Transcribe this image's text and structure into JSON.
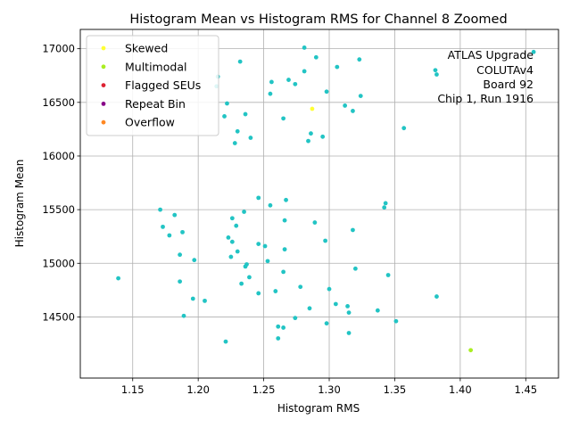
{
  "chart_data": {
    "type": "scatter",
    "title": "Histogram Mean vs Histogram RMS for Channel 8 Zoomed",
    "xlabel": "Histogram RMS",
    "ylabel": "Histogram Mean",
    "xlim": [
      1.11,
      1.475
    ],
    "ylim": [
      13930,
      17180
    ],
    "xticks": [
      1.15,
      1.2,
      1.25,
      1.3,
      1.35,
      1.4,
      1.45
    ],
    "xtick_labels": [
      "1.15",
      "1.20",
      "1.25",
      "1.30",
      "1.35",
      "1.40",
      "1.45"
    ],
    "yticks": [
      14500,
      15000,
      15500,
      16000,
      16500,
      17000
    ],
    "ytick_labels": [
      "14500",
      "15000",
      "15500",
      "16000",
      "16500",
      "17000"
    ],
    "grid": true,
    "legend_placement": "top-left",
    "legend": [
      {
        "label": "Skewed",
        "color": "#ffff33"
      },
      {
        "label": "Multimodal",
        "color": "#aaee22"
      },
      {
        "label": "Flagged SEUs",
        "color": "#dd2233"
      },
      {
        "label": "Repeat Bin",
        "color": "#880088"
      },
      {
        "label": "Overflow",
        "color": "#ff8822"
      }
    ],
    "annotation": [
      "ATLAS Upgrade",
      "COLUTAv4",
      "Board 92",
      "Chip 1, Run 1916"
    ],
    "series": [
      {
        "color": "#22c4c4",
        "points": [
          [
            1.281,
            17010
          ],
          [
            1.29,
            16920
          ],
          [
            1.323,
            16900
          ],
          [
            1.232,
            16880
          ],
          [
            1.306,
            16830
          ],
          [
            1.281,
            16790
          ],
          [
            1.215,
            16740
          ],
          [
            1.269,
            16710
          ],
          [
            1.256,
            16690
          ],
          [
            1.274,
            16670
          ],
          [
            1.214,
            16650
          ],
          [
            1.298,
            16600
          ],
          [
            1.255,
            16580
          ],
          [
            1.324,
            16560
          ],
          [
            1.222,
            16490
          ],
          [
            1.312,
            16470
          ],
          [
            1.318,
            16420
          ],
          [
            1.236,
            16390
          ],
          [
            1.22,
            16370
          ],
          [
            1.265,
            16350
          ],
          [
            1.357,
            16260
          ],
          [
            1.23,
            16230
          ],
          [
            1.286,
            16210
          ],
          [
            1.295,
            16180
          ],
          [
            1.24,
            16170
          ],
          [
            1.284,
            16140
          ],
          [
            1.228,
            16120
          ],
          [
            1.381,
            16800
          ],
          [
            1.382,
            16760
          ],
          [
            1.456,
            16970
          ],
          [
            1.246,
            15610
          ],
          [
            1.267,
            15590
          ],
          [
            1.343,
            15560
          ],
          [
            1.255,
            15540
          ],
          [
            1.342,
            15520
          ],
          [
            1.171,
            15500
          ],
          [
            1.235,
            15480
          ],
          [
            1.182,
            15450
          ],
          [
            1.226,
            15420
          ],
          [
            1.266,
            15400
          ],
          [
            1.289,
            15380
          ],
          [
            1.229,
            15350
          ],
          [
            1.173,
            15340
          ],
          [
            1.318,
            15310
          ],
          [
            1.188,
            15290
          ],
          [
            1.178,
            15260
          ],
          [
            1.223,
            15240
          ],
          [
            1.226,
            15200
          ],
          [
            1.297,
            15210
          ],
          [
            1.246,
            15180
          ],
          [
            1.251,
            15160
          ],
          [
            1.266,
            15130
          ],
          [
            1.23,
            15110
          ],
          [
            1.186,
            15080
          ],
          [
            1.225,
            15060
          ],
          [
            1.197,
            15030
          ],
          [
            1.253,
            15020
          ],
          [
            1.237,
            14990
          ],
          [
            1.236,
            14970
          ],
          [
            1.32,
            14950
          ],
          [
            1.265,
            14920
          ],
          [
            1.345,
            14890
          ],
          [
            1.239,
            14870
          ],
          [
            1.139,
            14860
          ],
          [
            1.186,
            14830
          ],
          [
            1.233,
            14810
          ],
          [
            1.278,
            14780
          ],
          [
            1.3,
            14760
          ],
          [
            1.259,
            14740
          ],
          [
            1.246,
            14720
          ],
          [
            1.382,
            14690
          ],
          [
            1.196,
            14670
          ],
          [
            1.205,
            14650
          ],
          [
            1.305,
            14620
          ],
          [
            1.314,
            14600
          ],
          [
            1.285,
            14580
          ],
          [
            1.337,
            14560
          ],
          [
            1.315,
            14540
          ],
          [
            1.189,
            14510
          ],
          [
            1.274,
            14490
          ],
          [
            1.351,
            14460
          ],
          [
            1.298,
            14440
          ],
          [
            1.261,
            14410
          ],
          [
            1.265,
            14400
          ],
          [
            1.315,
            14350
          ],
          [
            1.261,
            14300
          ],
          [
            1.221,
            14270
          ]
        ]
      },
      {
        "color": "#ffff33",
        "points": [
          [
            1.287,
            16440
          ]
        ]
      },
      {
        "color": "#aaee22",
        "points": [
          [
            1.408,
            14190
          ]
        ]
      }
    ]
  }
}
